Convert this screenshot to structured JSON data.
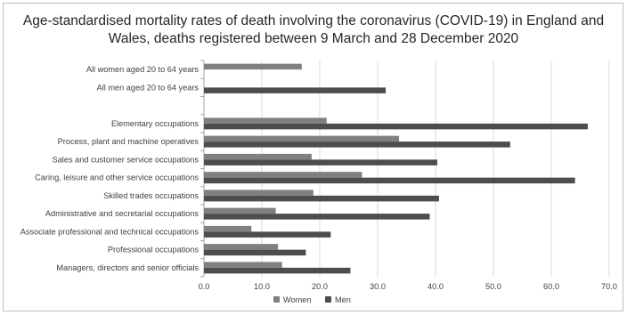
{
  "chart_data": {
    "type": "bar",
    "orientation": "horizontal",
    "title": "Age-standardised mortality rates of death involving the coronavirus (COVID-19) in England and Wales, deaths registered between 9 March and 28 December 2020",
    "categories": [
      "All women aged 20 to 64 years",
      "All men aged 20 to 64 years",
      "",
      "Elementary occupations",
      "Process, plant and machine operatives",
      "Sales and customer service occupations",
      "Caring, leisure and other service occupations",
      "Skilled trades occupations",
      "Administrative and secretarial occupations",
      "Associate professional and technical occupations",
      "Professional occupations",
      "Managers, directors and senior officials"
    ],
    "series": [
      {
        "name": "Women",
        "color": "#808080",
        "values": [
          16.9,
          null,
          null,
          21.2,
          33.7,
          18.6,
          27.3,
          18.9,
          12.4,
          8.2,
          12.8,
          13.5
        ]
      },
      {
        "name": "Men",
        "color": "#4d4d4d",
        "values": [
          null,
          31.4,
          null,
          66.3,
          52.9,
          40.3,
          64.1,
          40.6,
          39.0,
          21.9,
          17.6,
          25.3
        ]
      }
    ],
    "xlim": [
      0,
      70
    ],
    "xticks": [
      "0.0",
      "10.0",
      "20.0",
      "30.0",
      "40.0",
      "50.0",
      "60.0",
      "70.0"
    ],
    "grid": true,
    "legend": "bottom"
  }
}
